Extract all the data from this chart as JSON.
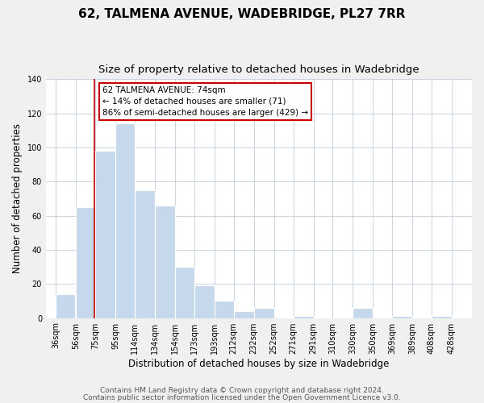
{
  "title": "62, TALMENA AVENUE, WADEBRIDGE, PL27 7RR",
  "subtitle": "Size of property relative to detached houses in Wadebridge",
  "xlabel": "Distribution of detached houses by size in Wadebridge",
  "ylabel": "Number of detached properties",
  "bar_left_edges": [
    36,
    56,
    75,
    95,
    114,
    134,
    154,
    173,
    193,
    212,
    232,
    252,
    271,
    291,
    310,
    330,
    350,
    369,
    389,
    408
  ],
  "bar_heights": [
    14,
    65,
    98,
    114,
    75,
    66,
    30,
    19,
    10,
    4,
    6,
    0,
    1,
    0,
    0,
    6,
    0,
    1,
    0,
    1
  ],
  "bar_widths": [
    19,
    19,
    20,
    19,
    20,
    20,
    19,
    20,
    19,
    20,
    20,
    19,
    20,
    19,
    19,
    20,
    19,
    20,
    19,
    20
  ],
  "tick_labels": [
    "36sqm",
    "56sqm",
    "75sqm",
    "95sqm",
    "114sqm",
    "134sqm",
    "154sqm",
    "173sqm",
    "193sqm",
    "212sqm",
    "232sqm",
    "252sqm",
    "271sqm",
    "291sqm",
    "310sqm",
    "330sqm",
    "350sqm",
    "369sqm",
    "389sqm",
    "408sqm",
    "428sqm"
  ],
  "tick_positions": [
    36,
    56,
    75,
    95,
    114,
    134,
    154,
    173,
    193,
    212,
    232,
    252,
    271,
    291,
    310,
    330,
    350,
    369,
    389,
    408,
    428
  ],
  "bar_color": "#c6d9ec",
  "bar_edge_color": "#ffffff",
  "property_line_x": 74,
  "property_line_color": "#cc0000",
  "ylim": [
    0,
    140
  ],
  "xlim": [
    26,
    448
  ],
  "annotation_text_line1": "62 TALMENA AVENUE: 74sqm",
  "annotation_text_line2": "← 14% of detached houses are smaller (71)",
  "annotation_text_line3": "86% of semi-detached houses are larger (429) →",
  "footer_line1": "Contains HM Land Registry data © Crown copyright and database right 2024.",
  "footer_line2": "Contains public sector information licensed under the Open Government Licence v3.0.",
  "background_color": "#f0f0f0",
  "plot_background_color": "#ffffff",
  "grid_color": "#c8d4e4",
  "title_fontsize": 11,
  "subtitle_fontsize": 9.5,
  "axis_label_fontsize": 8.5,
  "tick_fontsize": 7,
  "footer_fontsize": 6.5
}
